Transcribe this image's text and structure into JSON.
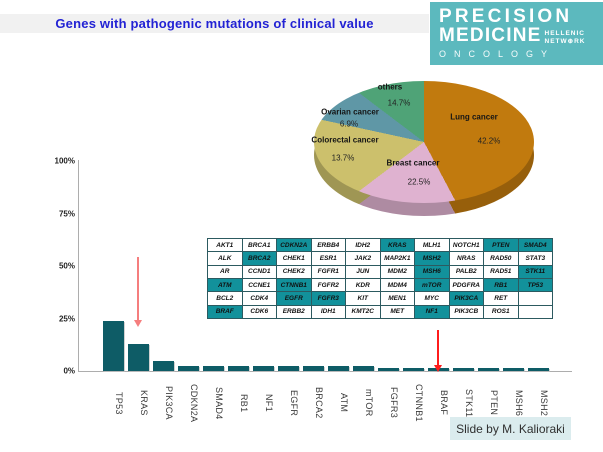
{
  "title": "Genes with pathogenic mutations of clinical value",
  "logo": {
    "line1": "PRECISION",
    "line2": "MEDICINE",
    "sub1": "HELLENIC",
    "sub2": "NETWORK",
    "line3": "ONCOLOGY"
  },
  "credit": "Slide by M. Kalioraki",
  "colors": {
    "title_text": "#2222D4",
    "title_bg": "#F1F1F1",
    "logo_bg": "#5CB9BE",
    "bar": "#0E5C66",
    "table_highlight": "#12919B",
    "credit_bg": "#DBECEE",
    "arrow_kras": "#F57E7E",
    "arrow_braf": "#FF1C1C"
  },
  "chart_data": [
    {
      "type": "pie",
      "labels": [
        "Lung cancer",
        "Breast cancer",
        "Colorectal cancer",
        "Ovarian cancer",
        "others"
      ],
      "values": [
        42.2,
        22.5,
        13.7,
        6.9,
        14.7
      ],
      "value_labels": [
        "42.2%",
        "22.5%",
        "13.7%",
        "6.9%",
        "14.7%"
      ],
      "colors": [
        "#C17A0E",
        "#DFB2D0",
        "#CCC06C",
        "#5F97A6",
        "#4FA377"
      ],
      "start_angle_deg": 0,
      "direction": "clockwise",
      "effect": "3d",
      "legend": "none"
    },
    {
      "type": "bar",
      "categories": [
        "TP53",
        "KRAS",
        "PIK3CA",
        "CDKN2A",
        "SMAD4",
        "RB1",
        "NF1",
        "EGFR",
        "BRCA2",
        "ATM",
        "mTOR",
        "FGFR3",
        "CTNNB1",
        "BRAF",
        "STK11",
        "PTEN",
        "MSH6",
        "MSH2"
      ],
      "values": [
        24,
        13,
        5,
        2.5,
        2.5,
        2.5,
        2.5,
        2.5,
        2.2,
        2.2,
        2.2,
        1.6,
        1.6,
        1.6,
        1.4,
        1.4,
        1.4,
        1.4
      ],
      "ylim": [
        0,
        100
      ],
      "yticks": [
        "0%",
        "25%",
        "50%",
        "75%",
        "100%"
      ],
      "grid": false,
      "annotations": [
        {
          "type": "arrow",
          "target": "KRAS"
        },
        {
          "type": "arrow",
          "target": "BRAF"
        }
      ]
    }
  ],
  "gene_table": {
    "rows": [
      [
        "AKT1",
        "BRCA1",
        "CDKN2A",
        "ERBB4",
        "IDH2",
        "KRAS",
        "MLH1",
        "NOTCH1",
        "PTEN",
        "SMAD4"
      ],
      [
        "ALK",
        "BRCA2",
        "CHEK1",
        "ESR1",
        "JAK2",
        "MAP2K1",
        "MSH2",
        "NRAS",
        "RAD50",
        "STAT3"
      ],
      [
        "AR",
        "CCND1",
        "CHEK2",
        "FGFR1",
        "JUN",
        "MDM2",
        "MSH6",
        "PALB2",
        "RAD51",
        "STK11"
      ],
      [
        "ATM",
        "CCNE1",
        "CTNNB1",
        "FGFR2",
        "KDR",
        "MDM4",
        "mTOR",
        "PDGFRA",
        "RB1",
        "TP53"
      ],
      [
        "BCL2",
        "CDK4",
        "EGFR",
        "FGFR3",
        "KIT",
        "MEN1",
        "MYC",
        "PIK3CA",
        "RET",
        ""
      ],
      [
        "BRAF",
        "CDK6",
        "ERBB2",
        "IDH1",
        "KMT2C",
        "MET",
        "NF1",
        "PIK3CB",
        "ROS1",
        ""
      ]
    ],
    "highlighted": [
      "CDKN2A",
      "KRAS",
      "PTEN",
      "SMAD4",
      "BRCA2",
      "MSH2",
      "MSH6",
      "STK11",
      "ATM",
      "CTNNB1",
      "mTOR",
      "RB1",
      "TP53",
      "EGFR",
      "FGFR3",
      "PIK3CA",
      "BRAF",
      "NF1"
    ]
  }
}
